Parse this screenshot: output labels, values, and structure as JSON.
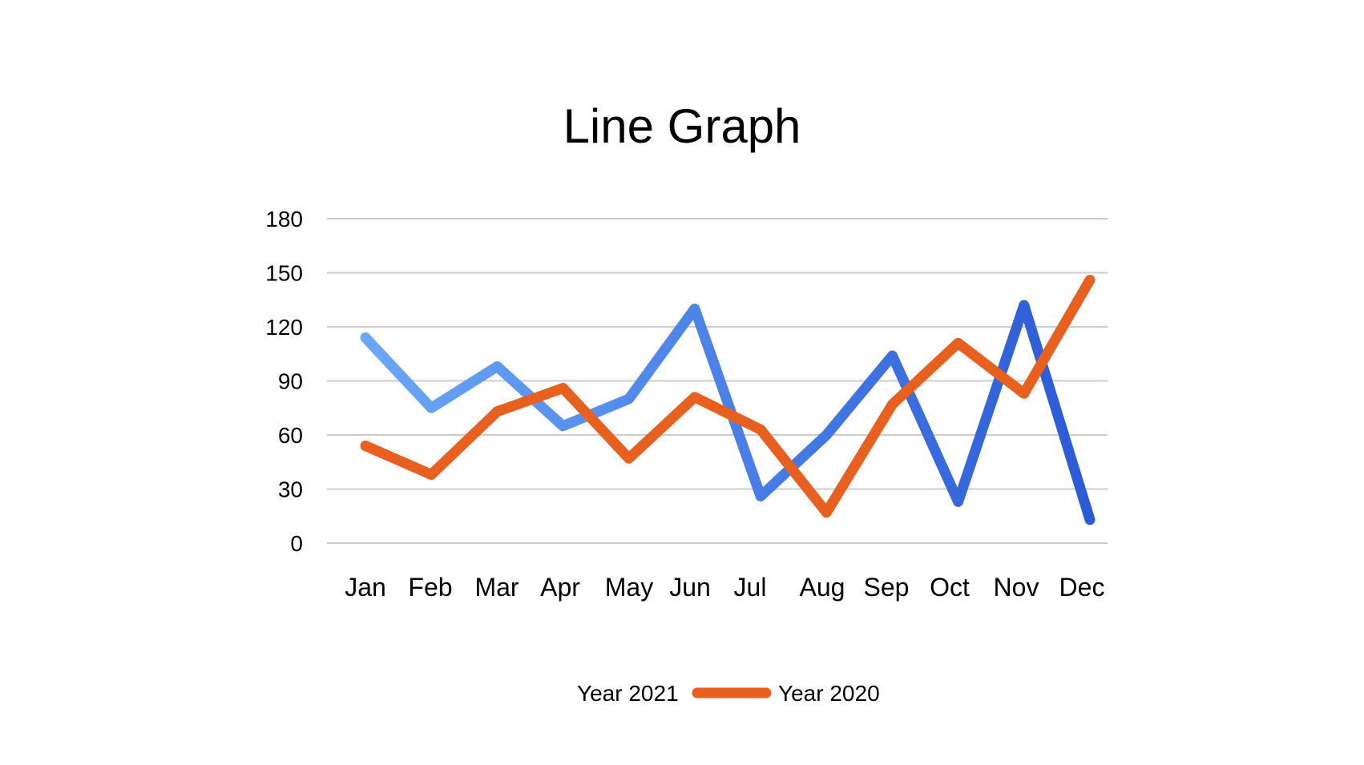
{
  "chart_data": {
    "type": "line",
    "title": "Line Graph",
    "xlabel": "",
    "ylabel": "",
    "categories": [
      "Jan",
      "Feb",
      "Mar",
      "Apr",
      "May",
      "Jun",
      "Jul",
      "Aug",
      "Sep",
      "Oct",
      "Nov",
      "Dec"
    ],
    "ylim": [
      0,
      180
    ],
    "yticks": [
      "0",
      "30",
      "60",
      "90",
      "120",
      "150",
      "180"
    ],
    "grid": true,
    "legend_position": "bottom",
    "series": [
      {
        "name": "Year 2021",
        "values": [
          114,
          75,
          98,
          65,
          80,
          130,
          26,
          60,
          104,
          23,
          132,
          13
        ],
        "color": "#3a6fdc",
        "gradient": [
          "#6aa7f7",
          "#2b5ad6"
        ]
      },
      {
        "name": "Year 2020",
        "values": [
          54,
          38,
          73,
          86,
          47,
          81,
          63,
          17,
          77,
          111,
          83,
          146
        ],
        "color": "#e8601f"
      }
    ]
  }
}
